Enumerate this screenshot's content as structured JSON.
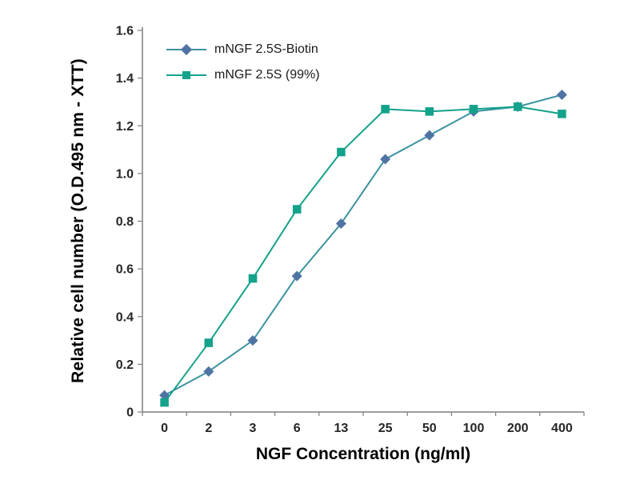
{
  "chart_data": {
    "type": "line",
    "categories": [
      "0",
      "2",
      "3",
      "6",
      "13",
      "25",
      "50",
      "100",
      "200",
      "400"
    ],
    "series": [
      {
        "name": "mNGF 2.5S-Biotin",
        "marker": "diamond",
        "color": "#4f74a3",
        "line_color": "#3b93a0",
        "values": [
          0.07,
          0.17,
          0.3,
          0.57,
          0.79,
          1.06,
          1.16,
          1.26,
          1.28,
          1.33
        ]
      },
      {
        "name": "mNGF 2.5S (99%)",
        "marker": "square",
        "color": "#14a28b",
        "line_color": "#14a28b",
        "values": [
          0.04,
          0.29,
          0.56,
          0.85,
          1.09,
          1.27,
          1.26,
          1.27,
          1.28,
          1.25
        ]
      }
    ],
    "title": "",
    "xlabel": "NGF Concentration (ng/ml)",
    "ylabel": "Relative cell number (O.D.495 nm - XTT)",
    "ylim": [
      0,
      1.6
    ],
    "ytick_step": 0.2,
    "y_tick_labels": [
      "0",
      "0.2",
      "0.4",
      "0.6",
      "0.8",
      "1.0",
      "1.2",
      "1.4",
      "1.6"
    ],
    "grid": false,
    "legend_position": "top-left-inside",
    "axis_color": "#7f7f7f",
    "background_color": "#ffffff"
  }
}
